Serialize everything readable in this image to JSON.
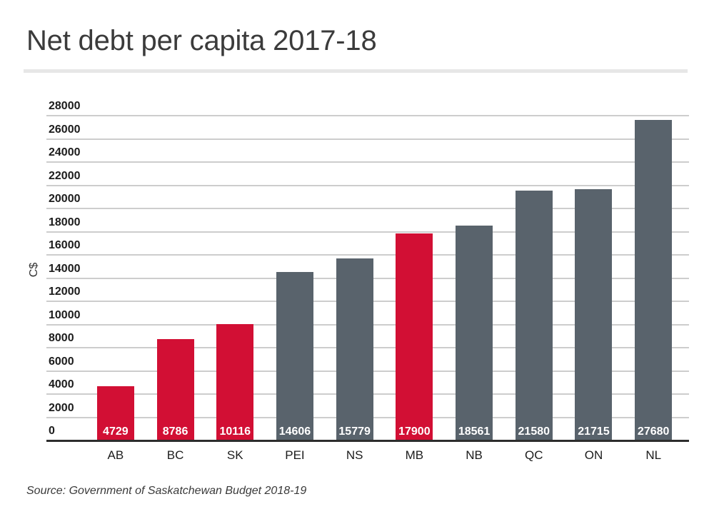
{
  "chart_data": {
    "type": "bar",
    "title": "Net debt per capita 2017-18",
    "ylabel": "C$",
    "xlabel": "",
    "categories": [
      "AB",
      "BC",
      "SK",
      "PEI",
      "NS",
      "MB",
      "NB",
      "QC",
      "ON",
      "NL"
    ],
    "values": [
      4729,
      8786,
      10116,
      14606,
      15779,
      17900,
      18561,
      21580,
      21715,
      27680
    ],
    "highlighted_categories": [
      "AB",
      "BC",
      "SK",
      "MB"
    ],
    "highlight_color": "#d20f34",
    "default_color": "#59636c",
    "ylim": [
      0,
      28000
    ],
    "yticks": [
      0,
      2000,
      4000,
      6000,
      8000,
      10000,
      12000,
      14000,
      16000,
      18000,
      20000,
      22000,
      24000,
      26000,
      28000
    ],
    "grid": "horizontal",
    "legend": "none",
    "value_label_position": "inside-bottom",
    "value_label_color": "#ffffff",
    "source": "Source: Government of Saskatchewan Budget 2018-19"
  }
}
